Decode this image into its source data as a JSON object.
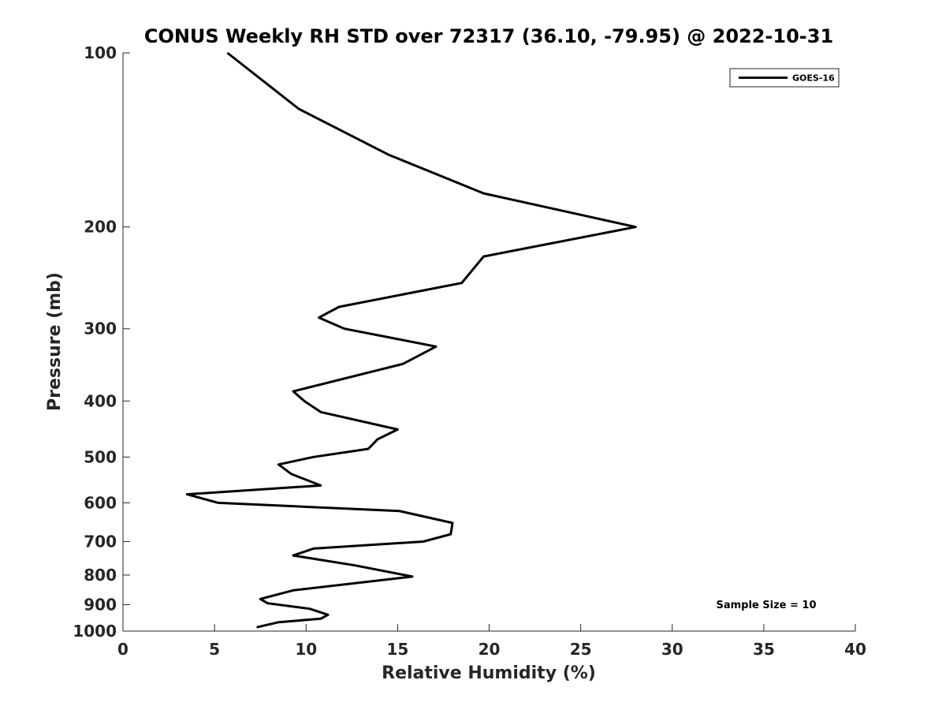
{
  "chart_data": {
    "type": "line",
    "title": "CONUS Weekly RH STD over 72317 (36.10, -79.95) @ 2022-10-31",
    "xlabel": "Relative Humidity (%)",
    "ylabel": "Pressure (mb)",
    "xlim": [
      0,
      40
    ],
    "ylim": [
      100,
      1000
    ],
    "y_scale": "log",
    "y_reversed": true,
    "x_ticks": [
      0,
      5,
      10,
      15,
      20,
      25,
      30,
      35,
      40
    ],
    "y_ticks": [
      100,
      200,
      300,
      400,
      500,
      600,
      700,
      800,
      900,
      1000
    ],
    "grid": false,
    "legend_position": "top-right",
    "annotation": "Sample Size = 10",
    "series": [
      {
        "name": "GOES-16",
        "color": "#000000",
        "points": [
          {
            "x": 5.7,
            "p": 100
          },
          {
            "x": 9.6,
            "p": 125
          },
          {
            "x": 14.5,
            "p": 150
          },
          {
            "x": 19.7,
            "p": 175
          },
          {
            "x": 28.0,
            "p": 200
          },
          {
            "x": 19.7,
            "p": 225
          },
          {
            "x": 18.5,
            "p": 250
          },
          {
            "x": 11.8,
            "p": 275
          },
          {
            "x": 10.7,
            "p": 287
          },
          {
            "x": 12.1,
            "p": 300
          },
          {
            "x": 17.1,
            "p": 322
          },
          {
            "x": 15.3,
            "p": 345
          },
          {
            "x": 9.3,
            "p": 385
          },
          {
            "x": 9.9,
            "p": 400
          },
          {
            "x": 10.8,
            "p": 418
          },
          {
            "x": 15.0,
            "p": 448
          },
          {
            "x": 13.9,
            "p": 466
          },
          {
            "x": 13.4,
            "p": 484
          },
          {
            "x": 10.4,
            "p": 500
          },
          {
            "x": 8.5,
            "p": 515
          },
          {
            "x": 9.2,
            "p": 535
          },
          {
            "x": 10.8,
            "p": 560
          },
          {
            "x": 3.5,
            "p": 580
          },
          {
            "x": 5.2,
            "p": 600
          },
          {
            "x": 15.1,
            "p": 620
          },
          {
            "x": 18.0,
            "p": 650
          },
          {
            "x": 17.9,
            "p": 680
          },
          {
            "x": 16.4,
            "p": 700
          },
          {
            "x": 10.4,
            "p": 720
          },
          {
            "x": 9.3,
            "p": 740
          },
          {
            "x": 12.7,
            "p": 770
          },
          {
            "x": 15.8,
            "p": 805
          },
          {
            "x": 9.3,
            "p": 850
          },
          {
            "x": 7.5,
            "p": 880
          },
          {
            "x": 7.9,
            "p": 895
          },
          {
            "x": 10.2,
            "p": 915
          },
          {
            "x": 11.2,
            "p": 937
          },
          {
            "x": 10.8,
            "p": 952
          },
          {
            "x": 8.5,
            "p": 965
          },
          {
            "x": 7.3,
            "p": 985
          }
        ]
      }
    ]
  }
}
